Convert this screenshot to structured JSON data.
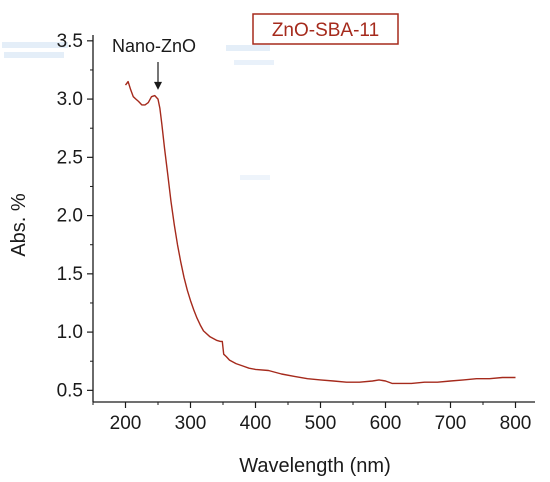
{
  "chart_data": {
    "type": "line",
    "title": "",
    "xlabel": "Wavelength (nm)",
    "ylabel": "Abs. %",
    "xlim": [
      150,
      830
    ],
    "ylim": [
      0.4,
      3.55
    ],
    "xticks": [
      200,
      300,
      400,
      500,
      600,
      700,
      800
    ],
    "yticks": [
      0.5,
      1.0,
      1.5,
      2.0,
      2.5,
      3.0,
      3.5
    ],
    "xtick_labels": [
      "200",
      "300",
      "400",
      "500",
      "600",
      "700",
      "800"
    ],
    "ytick_labels": [
      "0.5",
      "1.0",
      "1.5",
      "2.0",
      "2.5",
      "3.0",
      "3.5"
    ],
    "grid": false,
    "legend_box_label": "ZnO-SBA-11",
    "series": [
      {
        "name": "ZnO-SBA-11",
        "color": "#a52a1c",
        "x": [
          200,
          204,
          208,
          212,
          216,
          220,
          225,
          230,
          235,
          240,
          245,
          250,
          253,
          256,
          260,
          265,
          270,
          275,
          280,
          285,
          290,
          295,
          300,
          305,
          310,
          315,
          320,
          330,
          340,
          346,
          349,
          351,
          355,
          360,
          370,
          380,
          390,
          400,
          420,
          440,
          460,
          480,
          500,
          520,
          540,
          560,
          580,
          590,
          600,
          610,
          620,
          640,
          660,
          680,
          700,
          720,
          740,
          760,
          780,
          800
        ],
        "y": [
          3.12,
          3.15,
          3.08,
          3.02,
          3.0,
          2.98,
          2.95,
          2.95,
          2.97,
          3.02,
          3.03,
          3.0,
          2.92,
          2.78,
          2.58,
          2.35,
          2.12,
          1.92,
          1.75,
          1.6,
          1.47,
          1.36,
          1.27,
          1.19,
          1.12,
          1.06,
          1.01,
          0.96,
          0.93,
          0.92,
          0.92,
          0.81,
          0.79,
          0.76,
          0.73,
          0.71,
          0.69,
          0.68,
          0.67,
          0.64,
          0.62,
          0.6,
          0.59,
          0.58,
          0.57,
          0.57,
          0.58,
          0.59,
          0.58,
          0.56,
          0.56,
          0.56,
          0.57,
          0.57,
          0.58,
          0.59,
          0.6,
          0.6,
          0.61,
          0.61
        ]
      }
    ],
    "annotations": [
      {
        "text": "Nano-ZnO",
        "arrow_to_x": 250,
        "arrow_to_y": 3.07
      }
    ]
  },
  "colors": {
    "series": "#a52a1c",
    "axis": "#1a1a1a",
    "legend_border": "#a52a1c",
    "ghost_text": "#d6e6f5"
  }
}
